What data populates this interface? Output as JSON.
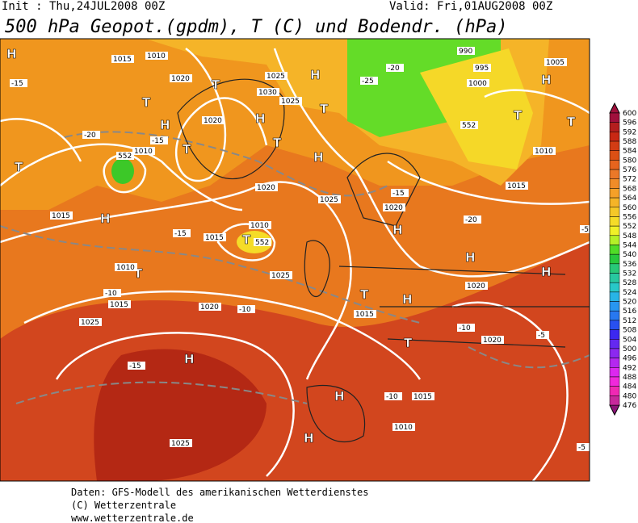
{
  "header": {
    "init": "Init : Thu,24JUL2008 00Z",
    "valid": "Valid: Fri,01AUG2008 00Z",
    "title": "500 hPa Geopot.(gpdm), T (C) und Bodendr. (hPa)"
  },
  "colorbar": {
    "levels": [
      600,
      596,
      592,
      588,
      584,
      580,
      576,
      572,
      568,
      564,
      560,
      556,
      552,
      548,
      544,
      540,
      536,
      532,
      528,
      524,
      520,
      516,
      512,
      508,
      504,
      500,
      496,
      492,
      488,
      484,
      480,
      476
    ],
    "colors": [
      "#a0103c",
      "#b41e1e",
      "#c82814",
      "#d23c14",
      "#dc5014",
      "#e6641e",
      "#eb7828",
      "#f08c28",
      "#f5a028",
      "#f5b428",
      "#f5c828",
      "#f5dc28",
      "#f0f028",
      "#b4f028",
      "#50dc28",
      "#28c83c",
      "#28c878",
      "#28c8a0",
      "#28c8c8",
      "#28b4e6",
      "#2896f0",
      "#2878f0",
      "#2850f0",
      "#3c28f0",
      "#6428f0",
      "#8c28f0",
      "#b428f0",
      "#dc28f0",
      "#f028dc",
      "#f028b4",
      "#c8289c",
      "#8c1478"
    ]
  },
  "map_labels": [
    "H",
    "T",
    "T",
    "H",
    "T",
    "H",
    "T",
    "H",
    "T",
    "T",
    "H",
    "H",
    "H",
    "T",
    "H",
    "T",
    "T",
    "H",
    "H",
    "T",
    "H",
    "T",
    "H",
    "T",
    "H",
    "H",
    "1015",
    "1010",
    "1020",
    "1025",
    "1030",
    "1025",
    "1020",
    "1010",
    "1015",
    "1020",
    "1025",
    "1010",
    "1015",
    "1020",
    "1025",
    "1015",
    "1020",
    "1010",
    "1015",
    "1020",
    "1025",
    "990",
    "995",
    "1000",
    "1005",
    "1010",
    "1015",
    "1020",
    "1015",
    "1010",
    "1025",
    "-15",
    "-20",
    "-25",
    "-20",
    "-15",
    "-15",
    "-20",
    "-15",
    "-10",
    "-10",
    "-15",
    "-10",
    "-5",
    "-5",
    "-10",
    "-5",
    "552",
    "552",
    "552"
  ],
  "footer": [
    "Daten: GFS-Modell des amerikanischen Wetterdienstes",
    "(C) Wetterzentrale",
    "www.wetterzentrale.de"
  ]
}
